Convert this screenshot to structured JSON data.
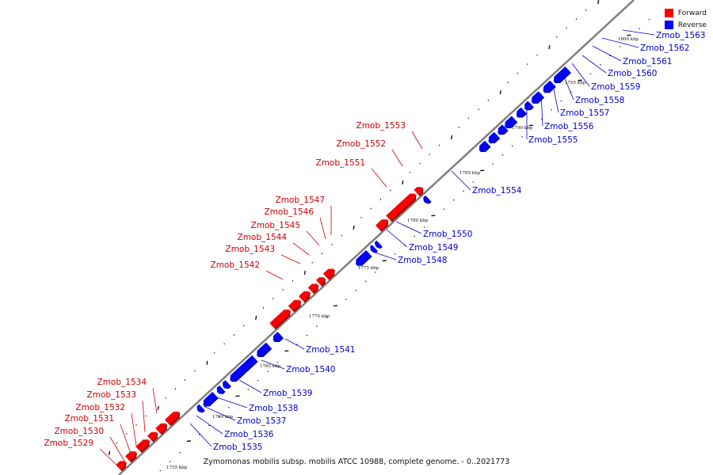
{
  "legend": {
    "forward_label": "Forward",
    "reverse_label": "Reverse",
    "forward_color": "#ff0000",
    "reverse_color": "#0000ff"
  },
  "caption": "Zymomonas mobilis subsp. mobilis ATCC 10988, complete genome. - 0..2021773",
  "colors": {
    "backbone": "#7f7f7f",
    "forward_label": "#cc0000",
    "reverse_label": "#0000cc",
    "tick": "#000000"
  },
  "kbp_ticks": [
    "1755 kbp",
    "1760 kbp",
    "1765 kbp",
    "1770 kbp",
    "1775 kbp",
    "1780 kbp",
    "1785 kbp",
    "1790 kbp",
    "1795 kbp",
    "1800 kbp"
  ],
  "forward_genes": [
    "Zmob_1529",
    "Zmob_1530",
    "Zmob_1531",
    "Zmob_1532",
    "Zmob_1533",
    "Zmob_1534",
    "Zmob_1542",
    "Zmob_1543",
    "Zmob_1544",
    "Zmob_1545",
    "Zmob_1546",
    "Zmob_1547",
    "Zmob_1551",
    "Zmob_1552",
    "Zmob_1553"
  ],
  "reverse_genes": [
    "Zmob_1535",
    "Zmob_1536",
    "Zmob_1537",
    "Zmob_1538",
    "Zmob_1539",
    "Zmob_1540",
    "Zmob_1541",
    "Zmob_1548",
    "Zmob_1549",
    "Zmob_1550",
    "Zmob_1554",
    "Zmob_1555",
    "Zmob_1556",
    "Zmob_1557",
    "Zmob_1558",
    "Zmob_1559",
    "Zmob_1560",
    "Zmob_1561",
    "Zmob_1562",
    "Zmob_1563"
  ]
}
